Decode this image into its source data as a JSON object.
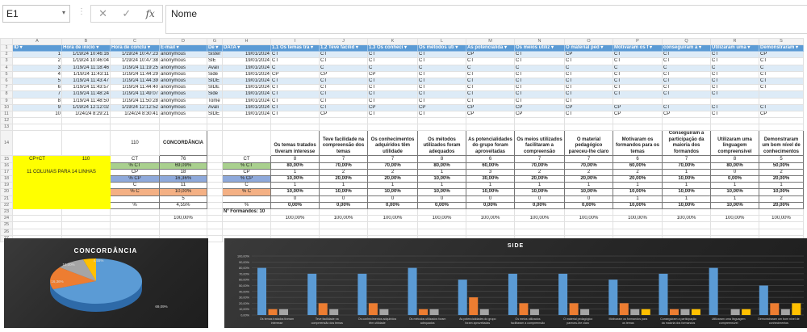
{
  "formula_bar": {
    "cell_ref": "E1",
    "formula": "Nome",
    "cancel_icon": "close-icon",
    "enter_icon": "check-icon",
    "fx_label": "fx"
  },
  "columns": [
    "A",
    "B",
    "C",
    "D",
    "G",
    "H",
    "I",
    "J",
    "K",
    "L",
    "M",
    "N",
    "O",
    "P",
    "Q",
    "R",
    "S"
  ],
  "responses": {
    "headers": [
      "ID",
      "Hora de início",
      "Hora de conclu",
      "E-mail",
      "De",
      "DATA",
      "1.1 Os temas tra",
      "1.2 Teve facilid",
      "1.3 Os conheci",
      "Os métodos uti",
      "As potencialida",
      "Os meios utiliz",
      "O material ped",
      "Motivaram os f",
      "conseguiram a",
      "Utilizaram uma",
      "Demonstraram"
    ],
    "rows": [
      [
        "1",
        "1/19/24 10:46:16",
        "1/19/24 10:47:23",
        "anonymous",
        "Sister",
        "19/01/2024",
        "CT",
        "CT",
        "CT",
        "CT",
        "CP",
        "CT",
        "CP",
        "CT",
        "CT",
        "CT",
        "CP"
      ],
      [
        "2",
        "1/19/24 10:46:04",
        "1/19/24 10:47:38",
        "anonymous",
        "SIE",
        "19/01/2024",
        "CT",
        "CT",
        "CT",
        "CT",
        "CT",
        "CT",
        "CT",
        "CT",
        "CT",
        "CT",
        "CT"
      ],
      [
        "3",
        "1/19/24 11:18:46",
        "1/19/24 11:19:25",
        "anonymous",
        "Avali",
        "19/01/2024",
        "C",
        "C",
        "C",
        "C",
        "C",
        "C",
        "C",
        "C",
        "C",
        "C",
        "C"
      ],
      [
        "4",
        "1/19/24 11:43:11",
        "1/19/24 11:44:29",
        "anonymous",
        "Side",
        "19/01/2024",
        "CP",
        "CP",
        "CP",
        "CT",
        "CT",
        "CT",
        "CT",
        "CT",
        "CT",
        "CT",
        "CT"
      ],
      [
        "5",
        "1/19/24 11:43:47",
        "1/19/24 11:44:39",
        "anonymous",
        "SIDE",
        "19/01/2024",
        "CT",
        "CT",
        "CT",
        "CT",
        "CT",
        "CT",
        "CT",
        "CT",
        "CT",
        "CT",
        "CT"
      ],
      [
        "6",
        "1/19/24 11:43:57",
        "1/19/24 11:44:40",
        "anonymous",
        "SIDE",
        "19/01/2024",
        "CT",
        "CT",
        "CT",
        "CT",
        "CT",
        "CT",
        "CT",
        "CT",
        "CT",
        "CT",
        "CT"
      ],
      [
        "7",
        "1/19/24 11:48:24",
        "1/19/24 11:49:07",
        "anonymous",
        "Side",
        "19/01/2024",
        "CT",
        "CT",
        "CT",
        "CT",
        "CT",
        "CT",
        "CT",
        "CT",
        "CT",
        "CT",
        ""
      ],
      [
        "8",
        "1/19/24 11:48:50",
        "1/19/24 11:50:28",
        "anonymous",
        "Tome",
        "19/01/2024",
        "CT",
        "CT",
        "CT",
        "CT",
        "CT",
        "CT",
        "CT",
        "",
        "",
        "",
        ""
      ],
      [
        "9",
        "1/19/24 12:12:02",
        "1/19/24 12:12:52",
        "anonymous",
        "Avali",
        "19/01/2024",
        "CT",
        "CT",
        "CP",
        "CP",
        "CP",
        "CP",
        "CP",
        "CP",
        "CT",
        "CT",
        "CT"
      ],
      [
        "10",
        "1/24/24 8:29:21",
        "1/24/24 8:30:41",
        "anonymous",
        "SIDE",
        "19/01/2024",
        "CT",
        "CP",
        "CT",
        "CT",
        "CP",
        "CP",
        "CT",
        "CP",
        "CP",
        "CT",
        "CP"
      ]
    ]
  },
  "summary": {
    "total_label": "110",
    "concordancia_header": "CONCORDÂNCIA",
    "yellow_cp_ct": "CP+CT",
    "yellow_value": "110",
    "yellow_note": "11 COLUNAS PARA 14 LINHAS",
    "row_labels": [
      "CT",
      "% CT",
      "CP",
      "% CP",
      "C",
      "% C",
      "",
      "%"
    ],
    "overall_values": [
      "76",
      "69,09%",
      "18",
      "16,36%",
      "11",
      "10,00%",
      "5",
      "4,55%"
    ],
    "overall_total": "100,00%",
    "formandos_label": "Nº Formandos: 10",
    "questions": [
      {
        "title": "Os temas tratados tiveram interesse",
        "values": [
          "8",
          "80,00%",
          "1",
          "10,00%",
          "1",
          "10,00%",
          "0",
          "0,00%"
        ],
        "total": "100,00%"
      },
      {
        "title": "Teve facilidade na compreensão dos temas",
        "values": [
          "7",
          "70,00%",
          "2",
          "20,00%",
          "1",
          "10,00%",
          "0",
          "0,00%"
        ],
        "total": "100,00%"
      },
      {
        "title": "Os conhecimentos adquiridos têm utilidade",
        "values": [
          "7",
          "70,00%",
          "2",
          "20,00%",
          "1",
          "10,00%",
          "0",
          "0,00%"
        ],
        "total": "100,00%"
      },
      {
        "title": "Os métodos utilizados foram adequados",
        "values": [
          "8",
          "80,00%",
          "1",
          "10,00%",
          "1",
          "10,00%",
          "0",
          "0,00%"
        ],
        "total": "100,00%"
      },
      {
        "title": "As potencialidades do grupo foram aproveitadas",
        "values": [
          "6",
          "60,00%",
          "3",
          "30,00%",
          "1",
          "10,00%",
          "0",
          "0,00%"
        ],
        "total": "100,00%"
      },
      {
        "title": "Os meios utilizados facilitaram a compreensão",
        "values": [
          "7",
          "70,00%",
          "2",
          "20,00%",
          "1",
          "10,00%",
          "0",
          "0,00%"
        ],
        "total": "100,00%"
      },
      {
        "title": "O material pedagógico pareceu-lhe claro",
        "values": [
          "7",
          "70,00%",
          "2",
          "20,00%",
          "1",
          "10,00%",
          "0",
          "0,00%"
        ],
        "total": "100,00%"
      },
      {
        "title": "Motivaram os formandos para os temas",
        "values": [
          "6",
          "60,00%",
          "2",
          "20,00%",
          "1",
          "10,00%",
          "1",
          "10,00%"
        ],
        "total": "100,00%"
      },
      {
        "title": "Conseguiram a participação da maioria dos formandos",
        "values": [
          "7",
          "70,00%",
          "1",
          "10,00%",
          "1",
          "10,00%",
          "1",
          "10,00%"
        ],
        "total": "100,00%"
      },
      {
        "title": "Utilizaram uma linguagem compreensível",
        "values": [
          "8",
          "80,00%",
          "0",
          "0,00%",
          "1",
          "10,00%",
          "1",
          "10,00%"
        ],
        "total": "100,00%"
      },
      {
        "title": "Demonstraram um bom nível de conhecimentos",
        "values": [
          "5",
          "50,00%",
          "2",
          "20,00%",
          "1",
          "10,00%",
          "2",
          "20,00%"
        ],
        "total": "100,00%"
      }
    ]
  },
  "chart_data": [
    {
      "type": "pie",
      "title": "CONCORDÂNCIA",
      "labels": [
        "69,09%",
        "16,36%",
        "10,00%",
        "4,55%"
      ],
      "values": [
        69.09,
        16.36,
        10.0,
        4.55
      ],
      "colors": [
        "#5b9bd5",
        "#ed7d31",
        "#a5a5a5",
        "#ffc000"
      ],
      "style": "3d"
    },
    {
      "type": "bar",
      "title": "SIDE",
      "categories": [
        "Os temas tratados tiveram interesse",
        "Teve facilidade na compreensão dos temas",
        "Os conhecimentos adquiridos têm utilidade",
        "Os métodos utilizados foram adequados",
        "As potencialidades do grupo foram aproveitadas",
        "Os meios utilizados facilitaram a compreensão",
        "O material pedagógico pareceu-lhe claro",
        "Motivaram os formandos para os temas",
        "Conseguiram a participação da maioria dos formandos",
        "Utilizaram uma linguagem compreensível",
        "Demonstraram um bom nível de conhecimentos"
      ],
      "series": [
        {
          "values": [
            80,
            70,
            70,
            80,
            60,
            70,
            70,
            60,
            70,
            80,
            50
          ],
          "color": "#5b9bd5"
        },
        {
          "values": [
            10,
            20,
            20,
            10,
            30,
            20,
            20,
            20,
            10,
            0,
            20
          ],
          "color": "#ed7d31"
        },
        {
          "values": [
            10,
            10,
            10,
            10,
            10,
            10,
            10,
            10,
            10,
            10,
            10
          ],
          "color": "#a5a5a5"
        },
        {
          "values": [
            0,
            0,
            0,
            0,
            0,
            0,
            0,
            10,
            10,
            10,
            20
          ],
          "color": "#ffc000"
        }
      ],
      "yticks": [
        "0,00%",
        "10,00%",
        "20,00%",
        "30,00%",
        "40,00%",
        "50,00%",
        "60,00%",
        "70,00%",
        "80,00%",
        "90,00%",
        "100,00%"
      ],
      "ylim": [
        0,
        100
      ],
      "grid": true
    }
  ]
}
